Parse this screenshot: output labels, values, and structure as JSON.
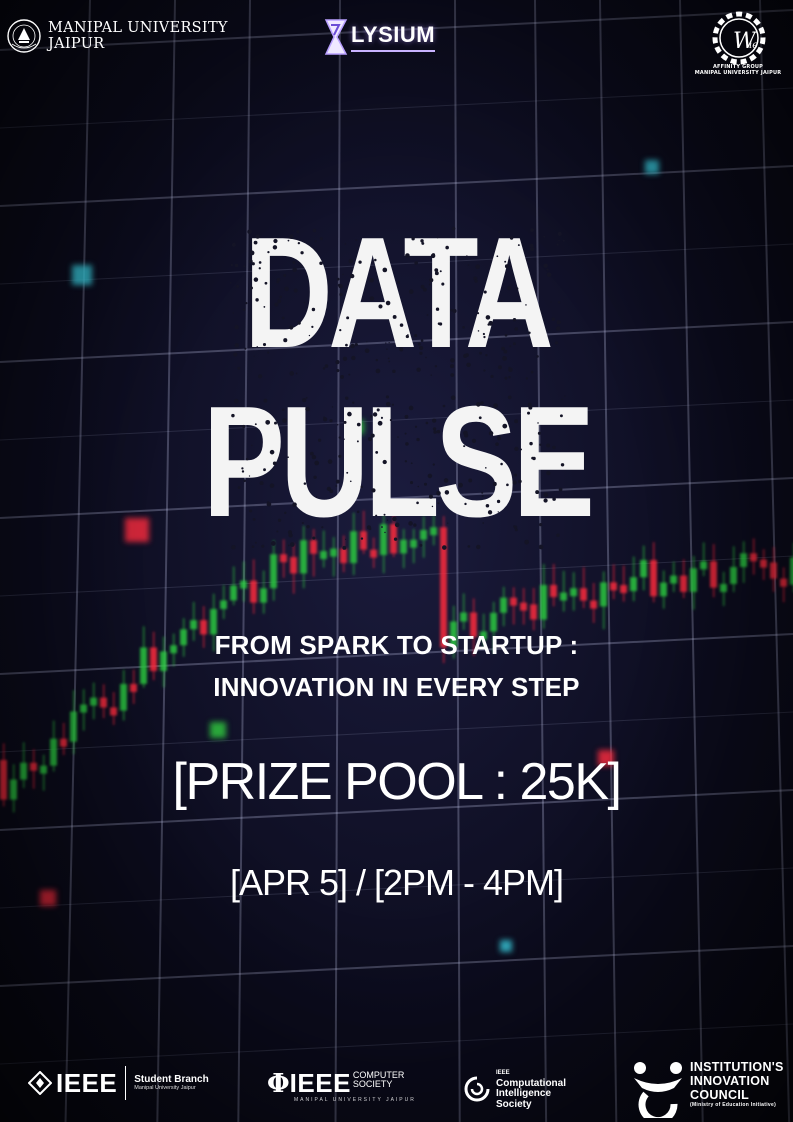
{
  "header": {
    "university_line1": "MANIPAL UNIVERSITY",
    "university_line2": "JAIPUR",
    "festival": "LYSIUM",
    "wie_line1": "AFFINITY GROUP",
    "wie_line2": "MANIPAL UNIVERSITY JAIPUR"
  },
  "title": {
    "line1": "DATA",
    "line2": "PULSE"
  },
  "tagline": {
    "line1": "FROM SPARK TO STARTUP :",
    "line2": "INNOVATION IN EVERY STEP"
  },
  "prize": "[PRIZE POOL : 25K]",
  "datetime": "[APR 5] / [2PM - 4PM]",
  "footer": {
    "ieee": "IEEE",
    "student_branch": "Student Branch",
    "student_branch_sub": "Manipal University Jaipur",
    "cs_ieee": "IEEE",
    "cs_line1": "COMPUTER",
    "cs_line2": "SOCIETY",
    "cs_sub": "MANIPAL UNIVERSITY JAIPUR",
    "cis_pre": "IEEE",
    "cis_line1": "Computational",
    "cis_line2": "Intelligence",
    "cis_line3": "Society",
    "iic_line1": "INSTITUTION'S",
    "iic_line2": "INNOVATION",
    "iic_line3": "COUNCIL",
    "iic_sub": "(Ministry of Education Initiative)"
  },
  "colors": {
    "background": "#0b0c1a",
    "candle_up": "#2ecc40",
    "candle_down": "#ff2a3d",
    "accent_cyan": "#3bd6e8",
    "elysium_accent": "#c9b3ff"
  }
}
